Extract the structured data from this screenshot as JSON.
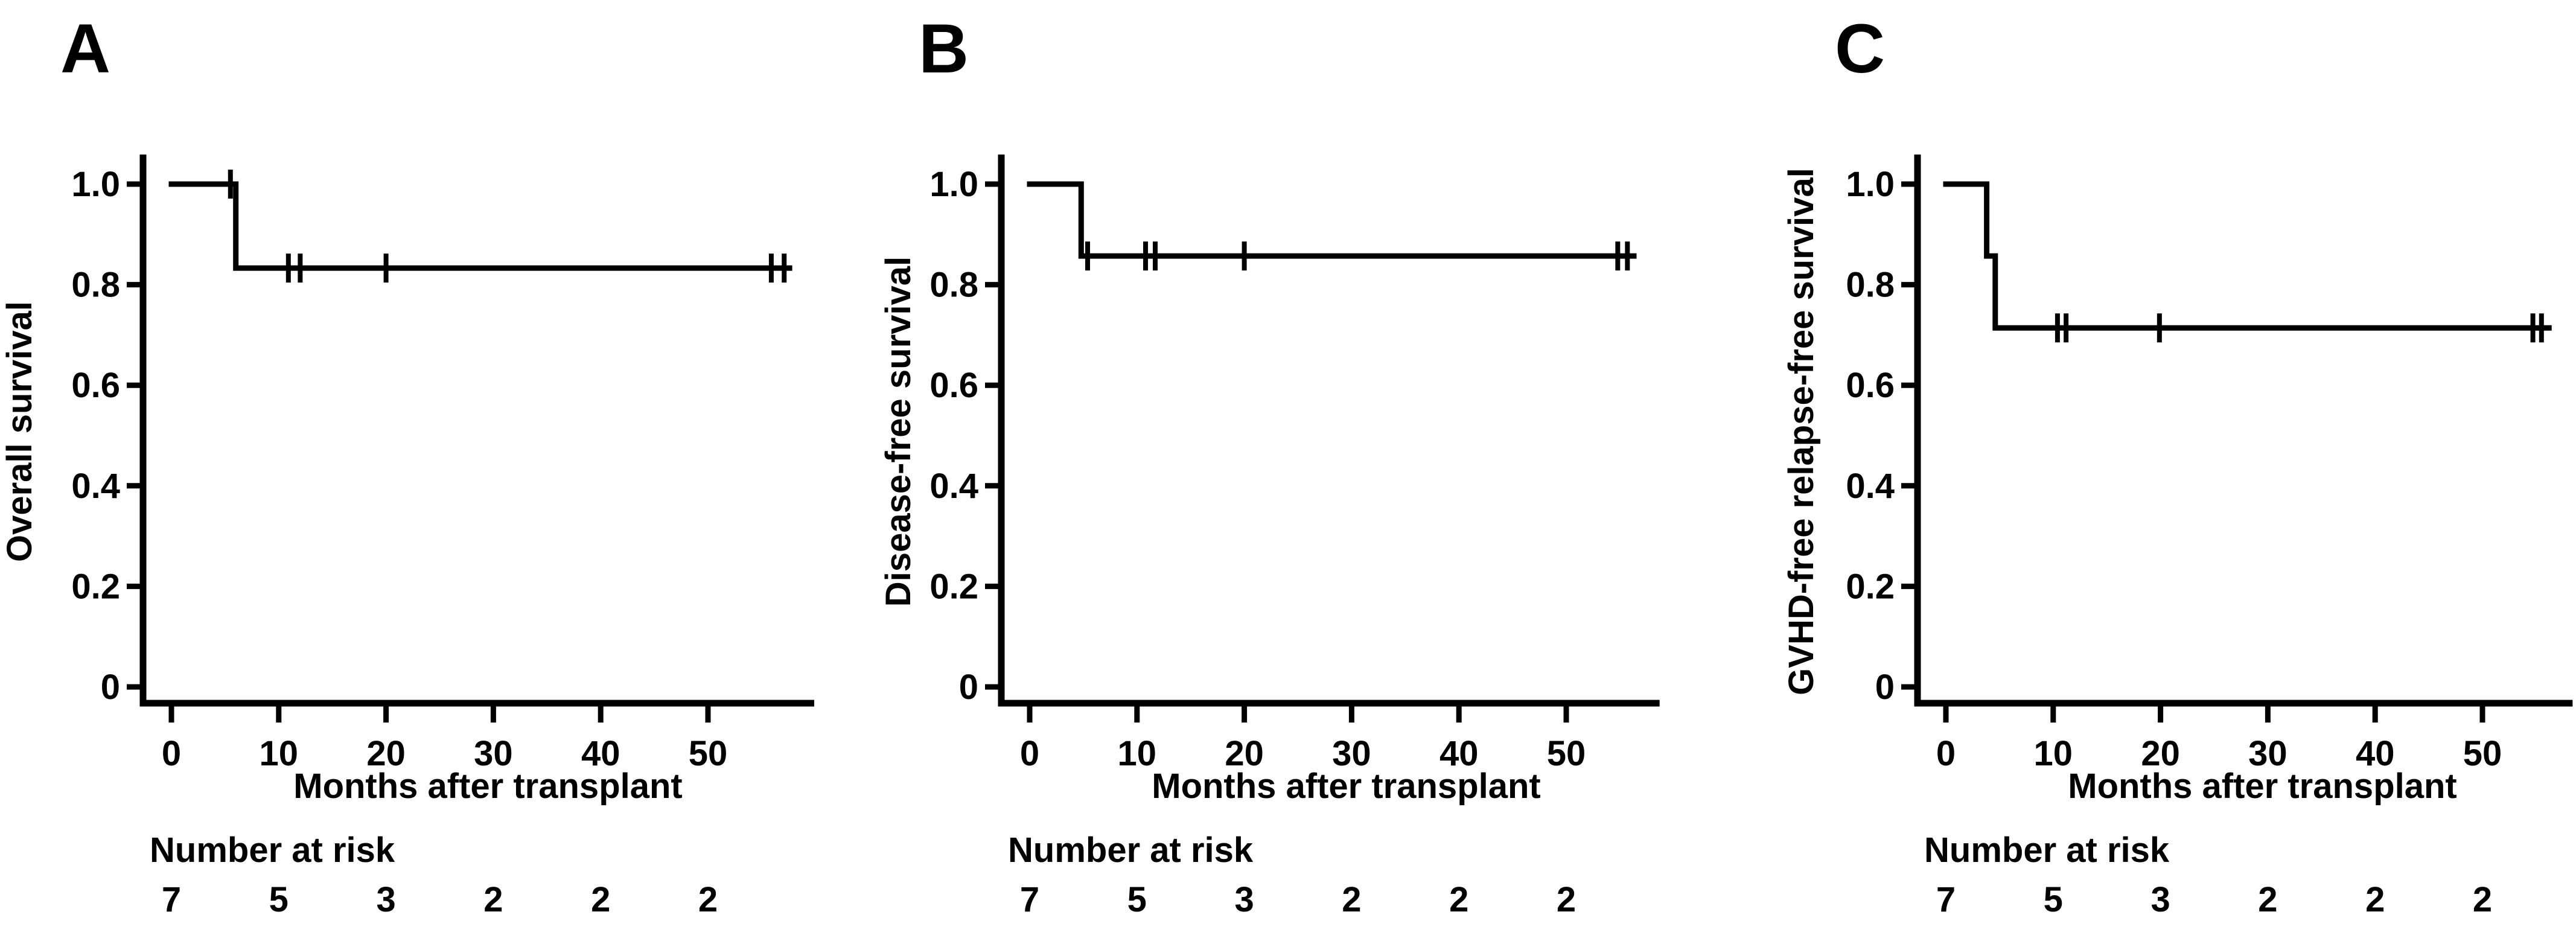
{
  "figure": {
    "background_color": "#ffffff",
    "line_color": "#000000",
    "text_color": "#000000"
  },
  "chart_data": [
    {
      "type": "line",
      "chart_style": "kaplan-meier-step",
      "panel_label": "A",
      "ylabel": "Overall survival",
      "xlabel": "Months after transplant",
      "xlim": [
        0,
        59.9
      ],
      "ylim": [
        0,
        1.0
      ],
      "x_ticks": [
        0,
        10,
        20,
        30,
        40,
        50
      ],
      "y_tick_values": [
        1.0,
        0.8,
        0.6,
        0.4,
        0.2,
        0
      ],
      "y_tick_labels": [
        "1.0",
        "0.8",
        "0.6",
        "0.4",
        "0.2",
        "0"
      ],
      "grid": false,
      "legend": false,
      "series": [
        {
          "name": "Overall survival",
          "steps_x_months": [
            0,
            6,
            6,
            57.6
          ],
          "steps_y_survival": [
            1.0,
            1.0,
            0.833,
            0.833
          ],
          "censor_marks": [
            [
              5.5,
              1.0
            ],
            [
              10.9,
              0.833
            ],
            [
              12.0,
              0.833
            ],
            [
              20.0,
              0.833
            ],
            [
              55.9,
              0.833
            ],
            [
              57.1,
              0.833
            ]
          ]
        }
      ],
      "risk_table": {
        "label": "Number at risk",
        "months": [
          0,
          10,
          20,
          30,
          40,
          50
        ],
        "values": [
          "7",
          "5",
          "3",
          "2",
          "2",
          "2"
        ]
      }
    },
    {
      "type": "line",
      "chart_style": "kaplan-meier-step",
      "panel_label": "B",
      "ylabel": "Disease-free survival",
      "xlabel": "Months after transplant",
      "xlim": [
        0,
        58.7
      ],
      "ylim": [
        0,
        1.0
      ],
      "x_ticks": [
        0,
        10,
        20,
        30,
        40,
        50
      ],
      "y_tick_values": [
        1.0,
        0.8,
        0.6,
        0.4,
        0.2,
        0
      ],
      "y_tick_labels": [
        "1.0",
        "0.8",
        "0.6",
        "0.4",
        "0.2",
        "0"
      ],
      "grid": false,
      "legend": false,
      "series": [
        {
          "name": "Disease-free survival",
          "steps_x_months": [
            0,
            4.8,
            4.8,
            56.3
          ],
          "steps_y_survival": [
            1.0,
            1.0,
            0.857,
            0.857
          ],
          "censor_marks": [
            [
              5.4,
              0.857
            ],
            [
              10.8,
              0.857
            ],
            [
              11.7,
              0.857
            ],
            [
              20.0,
              0.857
            ],
            [
              54.8,
              0.857
            ],
            [
              55.7,
              0.857
            ]
          ]
        }
      ],
      "risk_table": {
        "label": "Number at risk",
        "months": [
          0,
          10,
          20,
          30,
          40,
          50
        ],
        "values": [
          "7",
          "5",
          "3",
          "2",
          "2",
          "2"
        ]
      }
    },
    {
      "type": "line",
      "chart_style": "kaplan-meier-step",
      "panel_label": "C",
      "ylabel": "GVHD-free relapse-free survival",
      "xlabel": "Months after transplant",
      "xlim": [
        0,
        58.4
      ],
      "ylim": [
        0,
        1.0
      ],
      "x_ticks": [
        0,
        10,
        20,
        30,
        40,
        50
      ],
      "y_tick_values": [
        1.0,
        0.8,
        0.6,
        0.4,
        0.2,
        0
      ],
      "y_tick_labels": [
        "1.0",
        "0.8",
        "0.6",
        "0.4",
        "0.2",
        "0"
      ],
      "grid": false,
      "legend": false,
      "series": [
        {
          "name": "GVHD-free relapse-free survival",
          "steps_x_months": [
            0,
            3.8,
            3.8,
            4.6,
            4.6,
            56.2
          ],
          "steps_y_survival": [
            1.0,
            1.0,
            0.857,
            0.857,
            0.714,
            0.714
          ],
          "censor_marks": [
            [
              10.4,
              0.714
            ],
            [
              11.2,
              0.714
            ],
            [
              19.9,
              0.714
            ],
            [
              54.7,
              0.714
            ],
            [
              55.5,
              0.714
            ]
          ]
        }
      ],
      "risk_table": {
        "label": "Number at risk",
        "months": [
          0,
          10,
          20,
          30,
          40,
          50
        ],
        "values": [
          "7",
          "5",
          "3",
          "2",
          "2",
          "2"
        ]
      }
    }
  ]
}
